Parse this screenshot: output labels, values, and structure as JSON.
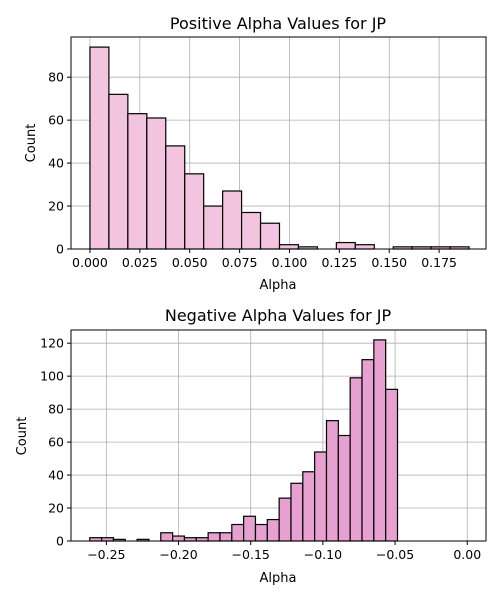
{
  "colors": {
    "bar_fill_top": "#f2c4e0",
    "bar_fill_bottom": "#e7a1d0",
    "bar_edge": "#000000",
    "grid": "#b0b0b0"
  },
  "chart_data": [
    {
      "type": "bar",
      "title": "Positive Alpha Values for JP",
      "xlabel": "Alpha",
      "ylabel": "Count",
      "grid": true,
      "xlim": [
        -0.0095,
        0.1985
      ],
      "ylim": [
        0,
        98.7
      ],
      "xticks": [
        0.0,
        0.025,
        0.05,
        0.075,
        0.1,
        0.125,
        0.15,
        0.175
      ],
      "xtick_labels": [
        "0.000",
        "0.025",
        "0.050",
        "0.075",
        "0.100",
        "0.125",
        "0.150",
        "0.175"
      ],
      "yticks": [
        0,
        20,
        40,
        60,
        80
      ],
      "bin_edges": [
        0.0,
        0.0095,
        0.019,
        0.0285,
        0.038,
        0.0475,
        0.057,
        0.0665,
        0.076,
        0.0855,
        0.095,
        0.1045,
        0.114,
        0.1235,
        0.133,
        0.1425,
        0.152,
        0.1615,
        0.171,
        0.1805,
        0.19
      ],
      "values": [
        94,
        72,
        63,
        61,
        48,
        35,
        20,
        27,
        17,
        12,
        2,
        1,
        0,
        3,
        2,
        0,
        1,
        1,
        1,
        1
      ]
    },
    {
      "type": "bar",
      "title": "Negative Alpha Values for JP",
      "xlabel": "Alpha",
      "ylabel": "Count",
      "grid": true,
      "xlim": [
        -0.2745,
        0.013
      ],
      "ylim": [
        0,
        128
      ],
      "xticks": [
        -0.25,
        -0.2,
        -0.15,
        -0.1,
        -0.05,
        0.0
      ],
      "xtick_labels": [
        "−0.25",
        "−0.20",
        "−0.15",
        "−0.10",
        "−0.05",
        "0.00"
      ],
      "yticks": [
        0,
        20,
        40,
        60,
        80,
        100,
        120
      ],
      "bin_edges": [
        -0.2615,
        -0.2533,
        -0.2451,
        -0.2369,
        -0.2287,
        -0.2205,
        -0.2123,
        -0.2041,
        -0.1959,
        -0.1877,
        -0.1795,
        -0.1713,
        -0.1631,
        -0.1549,
        -0.1467,
        -0.1385,
        -0.1303,
        -0.1221,
        -0.1139,
        -0.1057,
        -0.0975,
        -0.0893,
        -0.0811,
        -0.0729,
        -0.0647,
        -0.0565,
        -0.0483,
        -0.0401,
        -0.0319,
        -0.0237,
        -0.0155,
        -0.0073,
        0.0
      ],
      "values": [
        2,
        2,
        1,
        0,
        1,
        0,
        5,
        3,
        2,
        2,
        5,
        5,
        10,
        15,
        10,
        13,
        26,
        35,
        42,
        54,
        73,
        64,
        99,
        110,
        122,
        92,
        0,
        0,
        0,
        0,
        0,
        0
      ]
    }
  ]
}
